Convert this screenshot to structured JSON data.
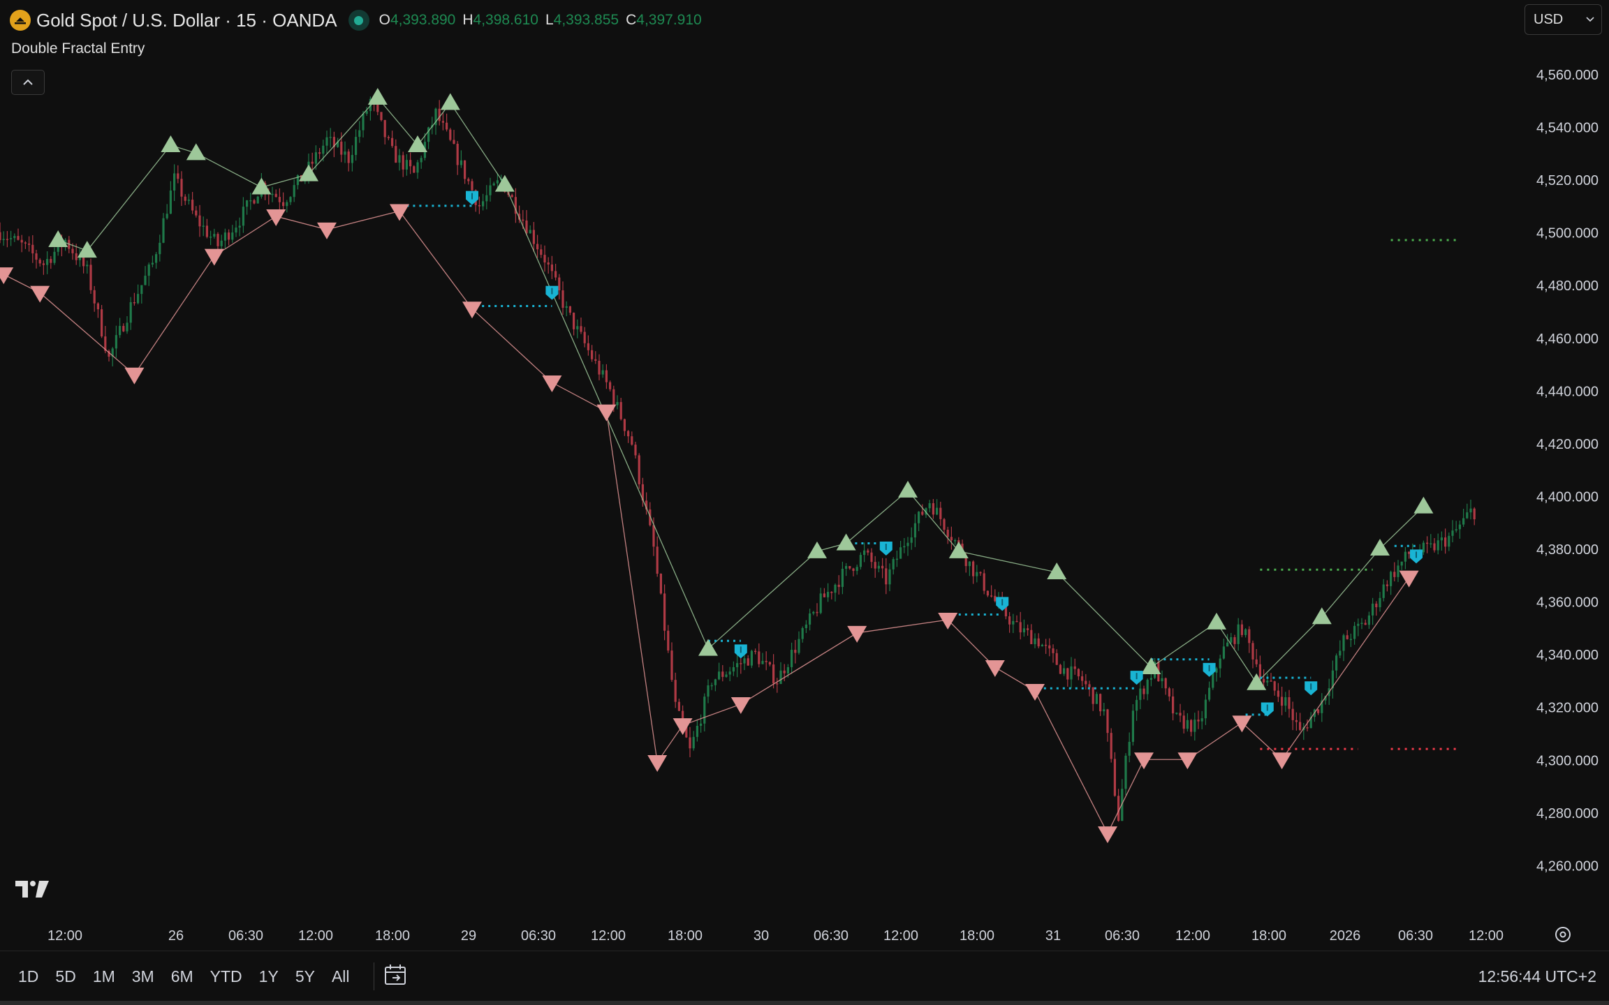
{
  "header": {
    "symbol_title": "Gold Spot / U.S. Dollar · 15 · OANDA",
    "ohlc": [
      {
        "key": "O",
        "value": "4,393.890"
      },
      {
        "key": "H",
        "value": "4,398.610"
      },
      {
        "key": "L",
        "value": "4,393.855"
      },
      {
        "key": "C",
        "value": "4,397.910"
      }
    ],
    "indicator_name": "Double Fractal Entry",
    "currency": "USD"
  },
  "bottom_bar": {
    "ranges": [
      "1D",
      "5D",
      "1M",
      "3M",
      "6M",
      "YTD",
      "1Y",
      "5Y",
      "All"
    ],
    "clock": "12:56:44 UTC+2"
  },
  "colors": {
    "background": "#0f0f0f",
    "up": "#1f7a4a",
    "down": "#b03a45",
    "fractal_up": "#9ec89a",
    "fractal_down": "#e39595",
    "entry_marker": "#19b4d4",
    "target_line": "#4caf50",
    "stop_line": "#ef3b4b"
  },
  "chart_data": {
    "type": "candlestick",
    "symbol": "Gold Spot / U.S. Dollar",
    "interval": "15",
    "y_ticks": [
      "4,560.000",
      "4,540.000",
      "4,520.000",
      "4,500.000",
      "4,480.000",
      "4,460.000",
      "4,440.000",
      "4,420.000",
      "4,400.000",
      "4,380.000",
      "4,360.000",
      "4,340.000",
      "4,320.000",
      "4,300.000",
      "4,280.000",
      "4,260.000"
    ],
    "y_range": [
      4245,
      4572
    ],
    "x_labels": [
      "12:00",
      "26",
      "06:30",
      "12:00",
      "18:00",
      "29",
      "06:30",
      "12:00",
      "18:00",
      "30",
      "06:30",
      "12:00",
      "18:00",
      "31",
      "06:30",
      "12:00",
      "18:00",
      "2026",
      "06:30",
      "12:00"
    ],
    "path": [
      [
        0,
        4500
      ],
      [
        6,
        4495
      ],
      [
        12,
        4488
      ],
      [
        18,
        4497
      ],
      [
        24,
        4485
      ],
      [
        30,
        4452
      ],
      [
        36,
        4472
      ],
      [
        42,
        4488
      ],
      [
        48,
        4520
      ],
      [
        54,
        4505
      ],
      [
        60,
        4495
      ],
      [
        66,
        4505
      ],
      [
        72,
        4518
      ],
      [
        78,
        4512
      ],
      [
        84,
        4522
      ],
      [
        90,
        4535
      ],
      [
        96,
        4528
      ],
      [
        102,
        4550
      ],
      [
        108,
        4530
      ],
      [
        114,
        4522
      ],
      [
        120,
        4545
      ],
      [
        126,
        4528
      ],
      [
        132,
        4510
      ],
      [
        138,
        4520
      ],
      [
        144,
        4505
      ],
      [
        150,
        4490
      ],
      [
        156,
        4470
      ],
      [
        162,
        4455
      ],
      [
        168,
        4440
      ],
      [
        174,
        4420
      ],
      [
        180,
        4380
      ],
      [
        186,
        4320
      ],
      [
        190,
        4303
      ],
      [
        196,
        4330
      ],
      [
        202,
        4335
      ],
      [
        208,
        4340
      ],
      [
        214,
        4330
      ],
      [
        220,
        4345
      ],
      [
        226,
        4360
      ],
      [
        232,
        4370
      ],
      [
        238,
        4378
      ],
      [
        244,
        4368
      ],
      [
        250,
        4385
      ],
      [
        256,
        4398
      ],
      [
        262,
        4385
      ],
      [
        268,
        4372
      ],
      [
        274,
        4360
      ],
      [
        280,
        4350
      ],
      [
        286,
        4345
      ],
      [
        292,
        4335
      ],
      [
        298,
        4330
      ],
      [
        304,
        4318
      ],
      [
        308,
        4278
      ],
      [
        312,
        4320
      ],
      [
        318,
        4335
      ],
      [
        324,
        4315
      ],
      [
        330,
        4312
      ],
      [
        336,
        4340
      ],
      [
        342,
        4350
      ],
      [
        348,
        4330
      ],
      [
        354,
        4322
      ],
      [
        358,
        4310
      ],
      [
        364,
        4322
      ],
      [
        370,
        4345
      ],
      [
        376,
        4352
      ],
      [
        382,
        4368
      ],
      [
        388,
        4378
      ],
      [
        394,
        4380
      ],
      [
        400,
        4385
      ],
      [
        405,
        4394
      ]
    ],
    "fractals_up": [
      [
        16,
        4497
      ],
      [
        24,
        4493
      ],
      [
        47,
        4533
      ],
      [
        54,
        4530
      ],
      [
        72,
        4517
      ],
      [
        85,
        4522
      ],
      [
        104,
        4551
      ],
      [
        115,
        4533
      ],
      [
        124,
        4549
      ],
      [
        139,
        4518
      ],
      [
        195,
        4342
      ],
      [
        225,
        4379
      ],
      [
        233,
        4382
      ],
      [
        250,
        4402
      ],
      [
        264,
        4379
      ],
      [
        291,
        4371
      ],
      [
        317,
        4335
      ],
      [
        335,
        4352
      ],
      [
        346,
        4329
      ],
      [
        364,
        4354
      ],
      [
        380,
        4380
      ],
      [
        392,
        4396
      ]
    ],
    "fractals_down": [
      [
        1,
        4484
      ],
      [
        11,
        4477
      ],
      [
        37,
        4446
      ],
      [
        59,
        4491
      ],
      [
        76,
        4506
      ],
      [
        90,
        4501
      ],
      [
        110,
        4508
      ],
      [
        130,
        4471
      ],
      [
        152,
        4443
      ],
      [
        167,
        4432
      ],
      [
        181,
        4299
      ],
      [
        188,
        4313
      ],
      [
        204,
        4321
      ],
      [
        236,
        4348
      ],
      [
        261,
        4353
      ],
      [
        274,
        4335
      ],
      [
        285,
        4326
      ],
      [
        305,
        4272
      ],
      [
        315,
        4300
      ],
      [
        327,
        4300
      ],
      [
        342,
        4314
      ],
      [
        353,
        4300
      ],
      [
        388,
        4369
      ]
    ],
    "entries": [
      [
        130,
        4513
      ],
      [
        152,
        4477
      ],
      [
        204,
        4341
      ],
      [
        244,
        4380
      ],
      [
        276,
        4359
      ],
      [
        313,
        4331
      ],
      [
        333,
        4334
      ],
      [
        349,
        4319
      ],
      [
        361,
        4327
      ],
      [
        390,
        4377
      ]
    ],
    "entry_levels": [
      [
        112,
        130,
        4510
      ],
      [
        131,
        152,
        4472
      ],
      [
        195,
        204,
        4345
      ],
      [
        232,
        244,
        4382
      ],
      [
        264,
        276,
        4355
      ],
      [
        284,
        313,
        4327
      ],
      [
        317,
        333,
        4338
      ],
      [
        343,
        349,
        4317
      ],
      [
        347,
        361,
        4331
      ],
      [
        384,
        390,
        4381
      ]
    ],
    "target_levels": [
      [
        383,
        402,
        4497
      ],
      [
        347,
        378,
        4372
      ]
    ],
    "stop_levels": [
      [
        347,
        374,
        4304
      ],
      [
        383,
        402,
        4304
      ]
    ]
  }
}
